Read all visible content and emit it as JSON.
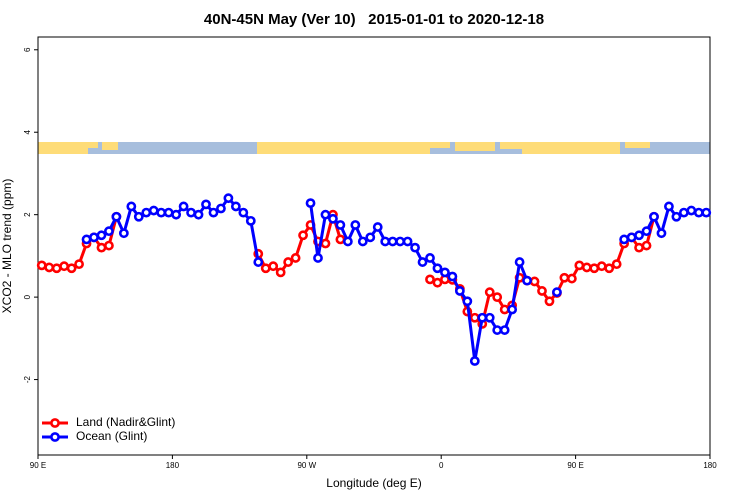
{
  "chart_data": {
    "type": "line",
    "title": "40N-45N May (Ver 10)   2015-01-01 to 2020-12-18",
    "x_label": "Longitude (deg E)",
    "y_label": "XCO2 - MLO trend (ppm)",
    "x": [
      92.5,
      97.5,
      102.5,
      107.5,
      112.5,
      117.5,
      122.5,
      127.5,
      132.5,
      137.5,
      142.5,
      147.5,
      152.5,
      157.5,
      162.5,
      167.5,
      172.5,
      177.5,
      182.5,
      187.5,
      192.5,
      197.5,
      202.5,
      207.5,
      212.5,
      217.5,
      222.5,
      227.5,
      232.5,
      237.5,
      242.5,
      247.5,
      252.5,
      257.5,
      262.5,
      267.5,
      272.5,
      277.5,
      282.5,
      287.5,
      292.5,
      297.5,
      302.5,
      307.5,
      312.5,
      317.5,
      322.5,
      327.5,
      332.5,
      337.5,
      342.5,
      347.5,
      352.5,
      357.5,
      362.5,
      367.5,
      372.5,
      377.5,
      382.5,
      387.5,
      392.5,
      397.5,
      402.5,
      407.5,
      412.5,
      417.5,
      422.5,
      427.5,
      432.5,
      437.5,
      442.5,
      447.5,
      452.5,
      457.5,
      462.5,
      467.5,
      472.5,
      477.5,
      482.5,
      487.5,
      492.5,
      497.5,
      502.5,
      507.5,
      512.5,
      517.5,
      522.5,
      527.5,
      532.5,
      537.5
    ],
    "series": [
      {
        "name": "Land (Nadir&Glint)",
        "color": "#ff0000",
        "values": [
          0.77,
          0.72,
          0.7,
          0.75,
          0.7,
          0.8,
          1.3,
          1.45,
          1.2,
          1.25,
          1.95,
          null,
          null,
          null,
          null,
          null,
          null,
          null,
          null,
          null,
          null,
          null,
          null,
          null,
          null,
          null,
          null,
          null,
          null,
          1.05,
          0.7,
          0.75,
          0.6,
          0.85,
          0.95,
          1.5,
          1.75,
          1.35,
          1.3,
          2.0,
          1.4,
          null,
          null,
          null,
          null,
          null,
          null,
          null,
          null,
          null,
          null,
          null,
          0.43,
          0.35,
          0.43,
          0.42,
          0.2,
          -0.35,
          -0.5,
          -0.65,
          0.12,
          0.0,
          -0.3,
          -0.2,
          0.47,
          0.4,
          0.38,
          0.15,
          -0.1,
          0.1,
          0.47,
          0.45,
          0.77,
          0.72,
          0.7,
          0.75,
          0.7,
          0.8,
          1.3,
          1.45,
          1.2,
          1.25,
          1.95,
          null,
          null,
          null,
          null,
          null,
          null,
          null
        ]
      },
      {
        "name": "Ocean (Glint)",
        "color": "#0000ff",
        "values": [
          null,
          null,
          null,
          null,
          null,
          null,
          1.4,
          1.45,
          1.5,
          1.6,
          1.95,
          1.55,
          2.2,
          1.95,
          2.05,
          2.1,
          2.05,
          2.05,
          2.0,
          2.2,
          2.05,
          2.0,
          2.25,
          2.05,
          2.15,
          2.4,
          2.2,
          2.05,
          1.85,
          0.85,
          null,
          null,
          null,
          null,
          null,
          null,
          2.28,
          0.95,
          2.0,
          1.9,
          1.75,
          1.35,
          1.75,
          1.35,
          1.45,
          1.7,
          1.35,
          1.35,
          1.35,
          1.35,
          1.2,
          0.85,
          0.95,
          0.7,
          0.6,
          0.5,
          0.15,
          -0.1,
          -1.55,
          -0.5,
          -0.5,
          -0.8,
          -0.8,
          -0.3,
          0.85,
          0.4,
          null,
          null,
          null,
          0.12,
          null,
          null,
          null,
          null,
          null,
          null,
          null,
          null,
          1.4,
          1.45,
          1.5,
          1.6,
          1.95,
          1.55,
          2.2,
          1.95,
          2.05,
          2.1,
          2.05,
          2.05
        ]
      }
    ],
    "xlim": [
      90,
      540
    ],
    "xticks": [
      {
        "value": 90,
        "label": "90 E"
      },
      180,
      {
        "value": 270,
        "label": "90 W"
      },
      {
        "value": 360,
        "label": "0"
      },
      {
        "value": 450,
        "label": "90 E"
      },
      {
        "value": 540,
        "label": "180"
      }
    ],
    "ylim": [
      -3.83,
      6.31
    ],
    "yticks": [
      -2,
      0,
      2,
      4,
      6
    ],
    "grid": false,
    "legend": "bottom-left"
  }
}
